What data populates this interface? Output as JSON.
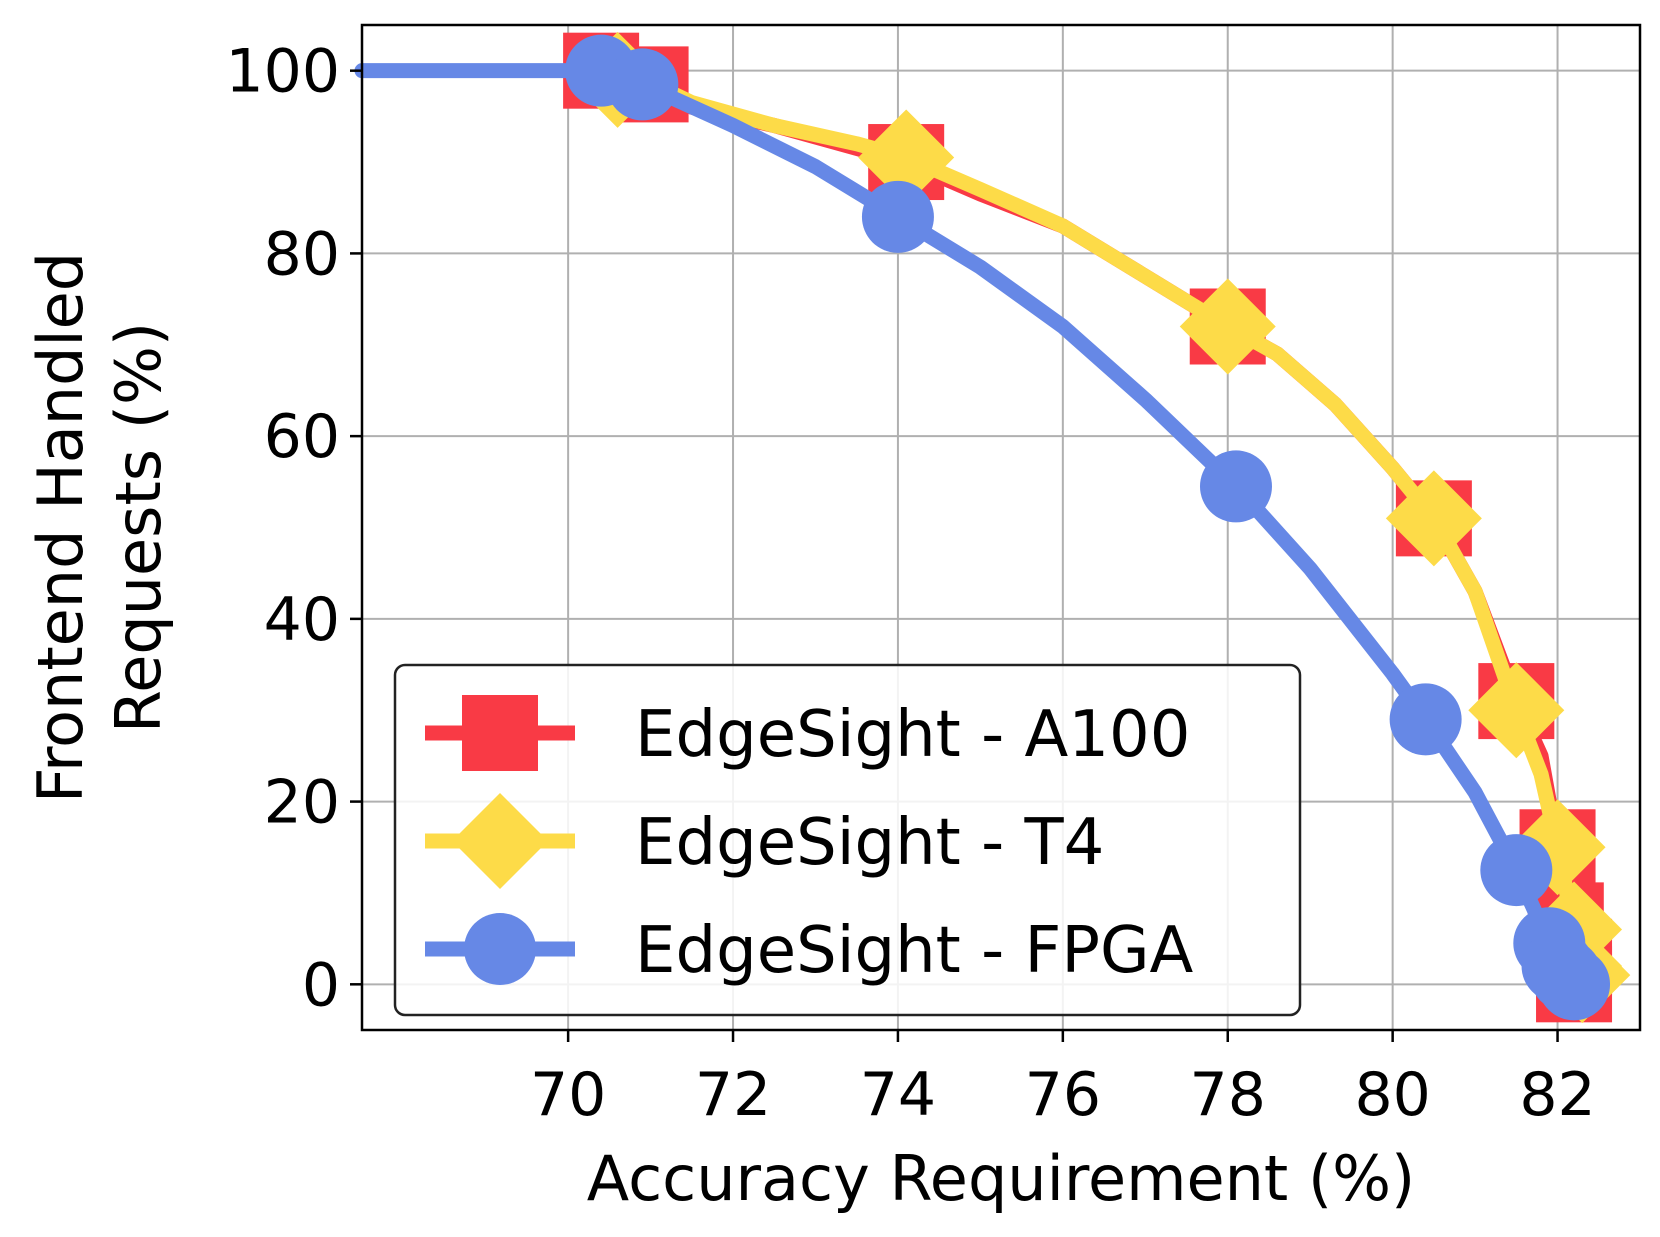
{
  "chart_data": {
    "type": "line",
    "xlabel": "Accuracy Requirement (%)",
    "ylabel_lines": [
      "Frontend Handled",
      "Requests (%)"
    ],
    "xlim": [
      67.5,
      83.0
    ],
    "ylim": [
      -5,
      105
    ],
    "xticks": [
      70,
      72,
      74,
      76,
      78,
      80,
      82
    ],
    "yticks": [
      0,
      20,
      40,
      60,
      80,
      100
    ],
    "grid": true,
    "legend_position": "lower-left",
    "series": [
      {
        "name": "EdgeSight - A100",
        "color": "#f93a45",
        "marker": "square",
        "line": [
          [
            70.4,
            100
          ],
          [
            71.0,
            98.5
          ],
          [
            71.5,
            96
          ],
          [
            72.5,
            94
          ],
          [
            73.5,
            91.5
          ],
          [
            74.1,
            90
          ],
          [
            75,
            86.5
          ],
          [
            76,
            83
          ],
          [
            77,
            77.5
          ],
          [
            78.0,
            72
          ],
          [
            78.6,
            69
          ],
          [
            79.3,
            63.5
          ],
          [
            80.0,
            56.5
          ],
          [
            80.5,
            51
          ],
          [
            81.0,
            43
          ],
          [
            81.5,
            31
          ],
          [
            81.8,
            25
          ],
          [
            82.0,
            15
          ],
          [
            82.1,
            7
          ],
          [
            82.2,
            3
          ],
          [
            82.3,
            0
          ]
        ],
        "markers": [
          [
            70.4,
            100
          ],
          [
            71.0,
            98.5
          ],
          [
            74.1,
            90
          ],
          [
            78.0,
            72
          ],
          [
            80.5,
            51
          ],
          [
            81.5,
            31
          ],
          [
            82.0,
            15
          ],
          [
            82.1,
            7
          ],
          [
            82.2,
            3
          ],
          [
            82.2,
            0
          ]
        ]
      },
      {
        "name": "EdgeSight - T4",
        "color": "#fddb48",
        "marker": "diamond",
        "line": [
          [
            70.4,
            100
          ],
          [
            70.8,
            99.5
          ],
          [
            71.5,
            96.5
          ],
          [
            72.5,
            94
          ],
          [
            73.5,
            92
          ],
          [
            74.1,
            90.5
          ],
          [
            75,
            87
          ],
          [
            76,
            83
          ],
          [
            77,
            77.5
          ],
          [
            78.0,
            72
          ],
          [
            78.6,
            69
          ],
          [
            79.3,
            63.5
          ],
          [
            80.0,
            56.5
          ],
          [
            80.5,
            51
          ],
          [
            81.0,
            43
          ],
          [
            81.5,
            30
          ],
          [
            81.8,
            23
          ],
          [
            82.0,
            15
          ],
          [
            82.2,
            6
          ],
          [
            82.3,
            1
          ]
        ],
        "markers": [
          [
            70.6,
            99
          ],
          [
            74.1,
            90.5
          ],
          [
            78.0,
            72
          ],
          [
            80.5,
            51
          ],
          [
            81.5,
            30
          ],
          [
            82.0,
            15
          ],
          [
            82.2,
            6
          ],
          [
            82.2,
            2
          ],
          [
            82.3,
            1
          ]
        ]
      },
      {
        "name": "EdgeSight - FPGA",
        "color": "#6688e6",
        "marker": "circle",
        "line": [
          [
            67.5,
            100
          ],
          [
            70.4,
            100
          ],
          [
            70.9,
            98.5
          ],
          [
            72,
            94
          ],
          [
            73,
            89.5
          ],
          [
            74.0,
            84
          ],
          [
            75,
            78.5
          ],
          [
            76,
            72
          ],
          [
            77,
            64
          ],
          [
            78.1,
            54.5
          ],
          [
            79,
            45.5
          ],
          [
            80,
            34
          ],
          [
            80.4,
            29
          ],
          [
            81,
            21
          ],
          [
            81.5,
            12.5
          ],
          [
            81.9,
            4.5
          ],
          [
            82.1,
            1
          ],
          [
            82.2,
            0
          ]
        ],
        "markers": [
          [
            70.4,
            100
          ],
          [
            70.9,
            98.5
          ],
          [
            74.0,
            84
          ],
          [
            78.1,
            54.5
          ],
          [
            80.4,
            29
          ],
          [
            81.5,
            12.5
          ],
          [
            81.9,
            4.5
          ],
          [
            82.0,
            2
          ],
          [
            82.1,
            1
          ],
          [
            82.2,
            0
          ]
        ]
      }
    ]
  }
}
